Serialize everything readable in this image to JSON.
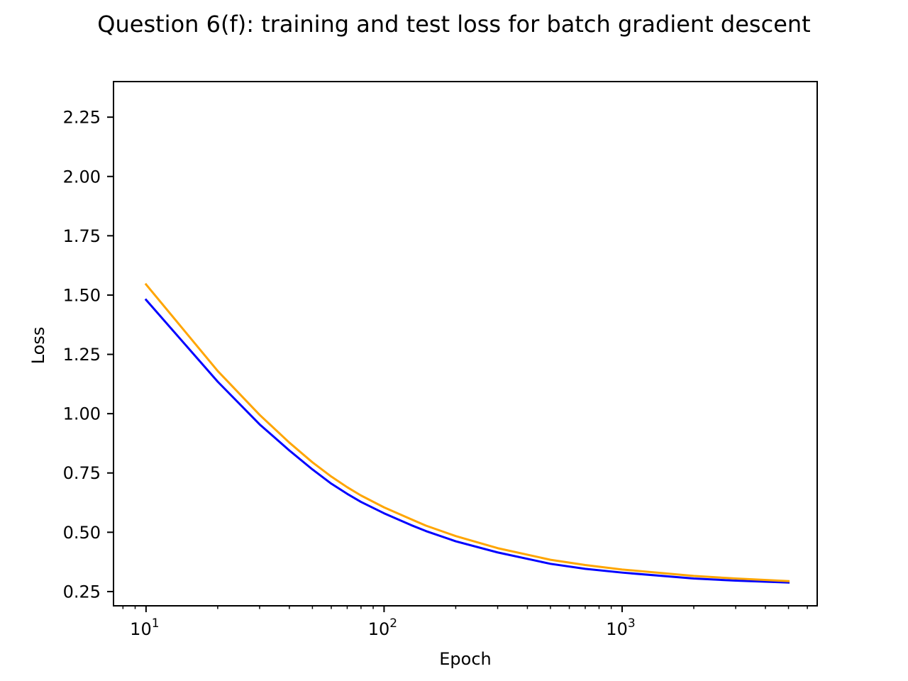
{
  "chart_data": {
    "type": "line",
    "title": "Question 6(f): training and test loss for batch gradient descent",
    "xlabel": "Epoch",
    "ylabel": "Loss",
    "xscale": "log",
    "xlim": [
      7.3,
      6600
    ],
    "ylim": [
      0.19,
      2.4
    ],
    "x_ticks": [
      {
        "value": 10,
        "base": "10",
        "exp": "1"
      },
      {
        "value": 100,
        "base": "10",
        "exp": "2"
      },
      {
        "value": 1000,
        "base": "10",
        "exp": "3"
      }
    ],
    "y_ticks": [
      {
        "value": 0.25,
        "label": "0.25"
      },
      {
        "value": 0.5,
        "label": "0.50"
      },
      {
        "value": 0.75,
        "label": "0.75"
      },
      {
        "value": 1.0,
        "label": "1.00"
      },
      {
        "value": 1.25,
        "label": "1.25"
      },
      {
        "value": 1.5,
        "label": "1.50"
      },
      {
        "value": 1.75,
        "label": "1.75"
      },
      {
        "value": 2.0,
        "label": "2.00"
      },
      {
        "value": 2.25,
        "label": "2.25"
      }
    ],
    "grid": false,
    "legend": false,
    "x": [
      10,
      20,
      30,
      40,
      50,
      60,
      70,
      80,
      100,
      130,
      150,
      200,
      300,
      500,
      700,
      1000,
      2000,
      3000,
      5000
    ],
    "series": [
      {
        "color": "#0000ff",
        "values": [
          1.48,
          1.135,
          0.955,
          0.845,
          0.765,
          0.705,
          0.662,
          0.628,
          0.58,
          0.53,
          0.505,
          0.462,
          0.415,
          0.367,
          0.346,
          0.33,
          0.305,
          0.296,
          0.288
        ]
      },
      {
        "color": "#ffa500",
        "values": [
          1.545,
          1.18,
          0.995,
          0.878,
          0.795,
          0.735,
          0.69,
          0.655,
          0.605,
          0.555,
          0.528,
          0.484,
          0.433,
          0.384,
          0.362,
          0.343,
          0.316,
          0.305,
          0.294
        ]
      }
    ]
  }
}
